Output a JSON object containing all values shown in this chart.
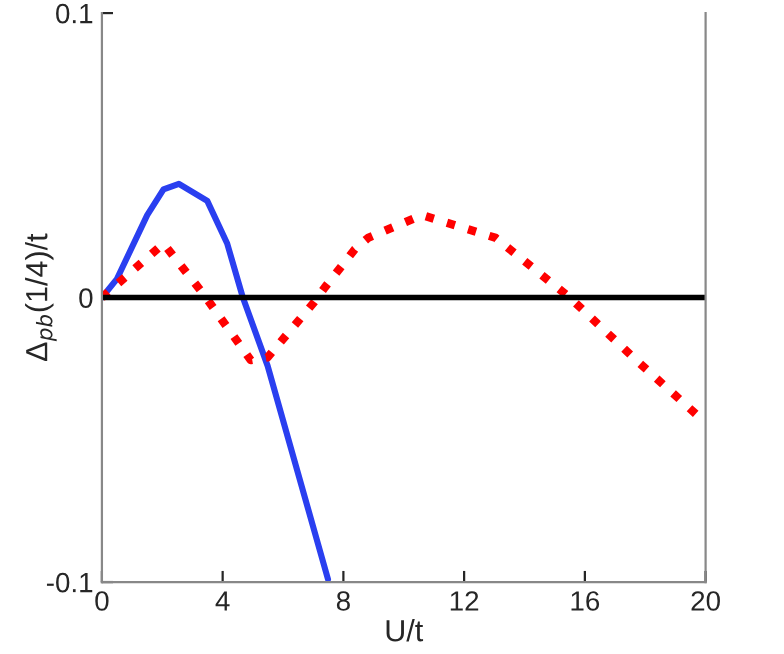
{
  "chart_data": {
    "type": "line",
    "xlabel": "U/t",
    "ylabel": "Δ$_{pb}$(1/4)/t",
    "xlim": [
      0,
      20
    ],
    "ylim": [
      -0.1,
      0.1
    ],
    "xticks": [
      0,
      4,
      8,
      12,
      16,
      20
    ],
    "yticks": [
      -0.1,
      0,
      0.1
    ],
    "grid": false,
    "legend": false,
    "series": [
      {
        "color": "#2a3ff0",
        "line_style": "solid",
        "x": [
          0,
          0.5,
          1.5,
          2.04,
          2.55,
          3.49,
          4.15,
          4.67,
          5.49,
          7.49
        ],
        "values": [
          0,
          0.0066,
          0.029,
          0.038,
          0.04,
          0.034,
          0.019,
          0,
          -0.024,
          -0.099
        ]
      },
      {
        "color": "#ff0000",
        "line_style": "dotted",
        "x": [
          0,
          2.04,
          3.38,
          4.93,
          5.49,
          7.04,
          7.38,
          8.38,
          8.82,
          10.6,
          13.04,
          15.5,
          17.7,
          20
        ],
        "values": [
          0,
          0.019,
          0.001,
          -0.022,
          -0.021,
          -0.0015,
          0.0035,
          0.017,
          0.021,
          0.029,
          0.021,
          0,
          -0.022,
          -0.044
        ]
      }
    ],
    "ref_lines": [
      {
        "axis": "y",
        "value": 0,
        "color": "#000000"
      }
    ]
  }
}
